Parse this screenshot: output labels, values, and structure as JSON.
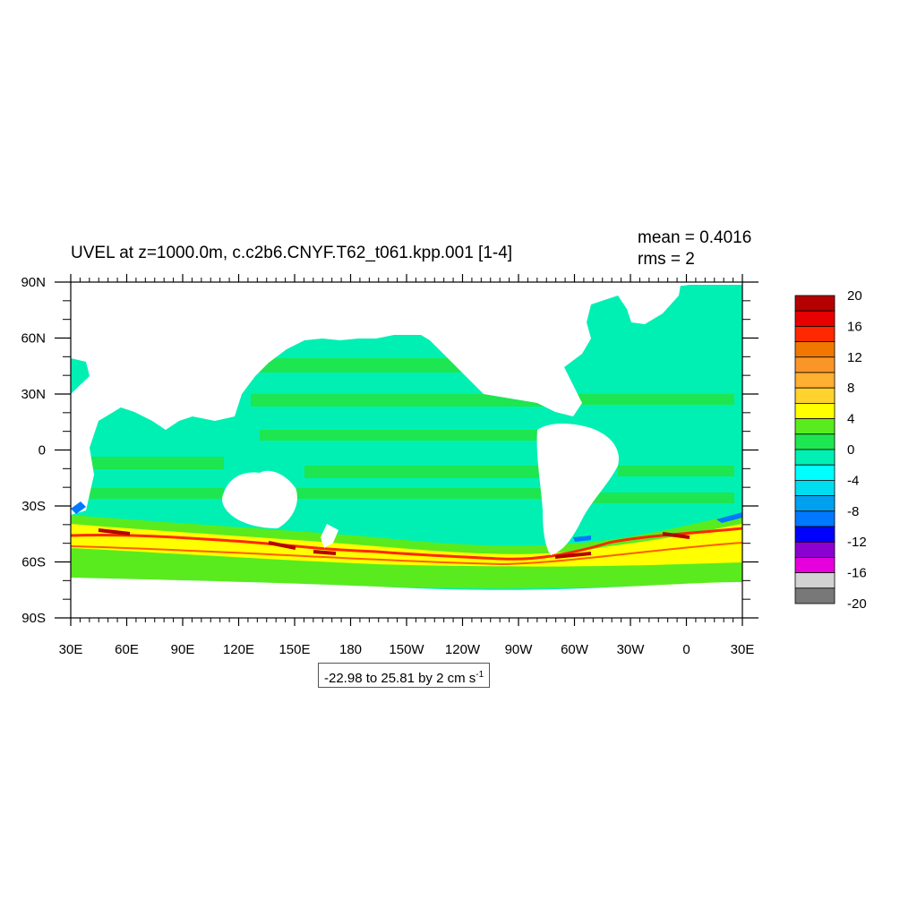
{
  "title": "UVEL at z=1000.0m, c.c2b6.CNYF.T62_t061.kpp.001 [1-4]",
  "stats": {
    "mean": "mean = 0.4016",
    "rms": "rms = 2"
  },
  "range": {
    "text": "-22.98 to 25.81 by 2 cm s",
    "exponent": "-1"
  },
  "axes": {
    "x_ticks": [
      "30E",
      "60E",
      "90E",
      "120E",
      "150E",
      "180",
      "150W",
      "120W",
      "90W",
      "60W",
      "30W",
      "0",
      "30E"
    ],
    "y_ticks": [
      "90N",
      "60N",
      "30N",
      "0",
      "30S",
      "60S",
      "90S"
    ]
  },
  "colorbar": {
    "labels": [
      "20",
      "16",
      "12",
      "8",
      "4",
      "0",
      "-4",
      "-8",
      "-12",
      "-16",
      "-20"
    ],
    "colors": [
      "#b40000",
      "#e60000",
      "#ff2800",
      "#f07800",
      "#fa9628",
      "#ffaf32",
      "#ffd22d",
      "#ffff00",
      "#5aeb1e",
      "#1ee650",
      "#00f0b4",
      "#00ffff",
      "#00dcf0",
      "#00a0f0",
      "#0078ff",
      "#0000ff",
      "#8c00d2",
      "#e600dc",
      "#d2d2d2",
      "#787878"
    ]
  },
  "map_colors": {
    "land": "#ffffff",
    "background_current": "#00f0b4",
    "weak_positive": "#1ee650",
    "positive": "#5aeb1e",
    "strong_positive": "#ffff00",
    "jet_core": "#ff2800",
    "jet_max": "#b40000",
    "negative": "#0078ff"
  }
}
